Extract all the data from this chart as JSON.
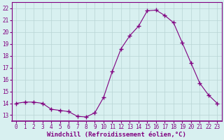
{
  "x": [
    0,
    1,
    2,
    3,
    4,
    5,
    6,
    7,
    8,
    9,
    10,
    11,
    12,
    13,
    14,
    15,
    16,
    17,
    18,
    19,
    20,
    21,
    22,
    23
  ],
  "y": [
    14.0,
    14.1,
    14.1,
    14.0,
    13.5,
    13.4,
    13.3,
    12.9,
    12.85,
    13.2,
    14.5,
    16.7,
    18.6,
    19.7,
    20.5,
    21.8,
    21.85,
    21.4,
    20.8,
    19.1,
    17.4,
    15.7,
    14.7,
    14.0
  ],
  "ylim": [
    12.5,
    22.5
  ],
  "yticks": [
    13,
    14,
    15,
    16,
    17,
    18,
    19,
    20,
    21,
    22
  ],
  "line_color": "#800080",
  "marker": "+",
  "marker_size": 4,
  "bg_color": "#d8f0f0",
  "grid_color": "#b8d4d4",
  "xlabel": "Windchill (Refroidissement éolien,°C)",
  "xlabel_fontsize": 6.5,
  "tick_fontsize": 5.5,
  "xtick_labels": [
    "0",
    "1",
    "2",
    "3",
    "4",
    "5",
    "6",
    "7",
    "8",
    "9",
    "10",
    "11",
    "12",
    "13",
    "14",
    "15",
    "16",
    "17",
    "18",
    "19",
    "20",
    "21",
    "22",
    "23"
  ]
}
